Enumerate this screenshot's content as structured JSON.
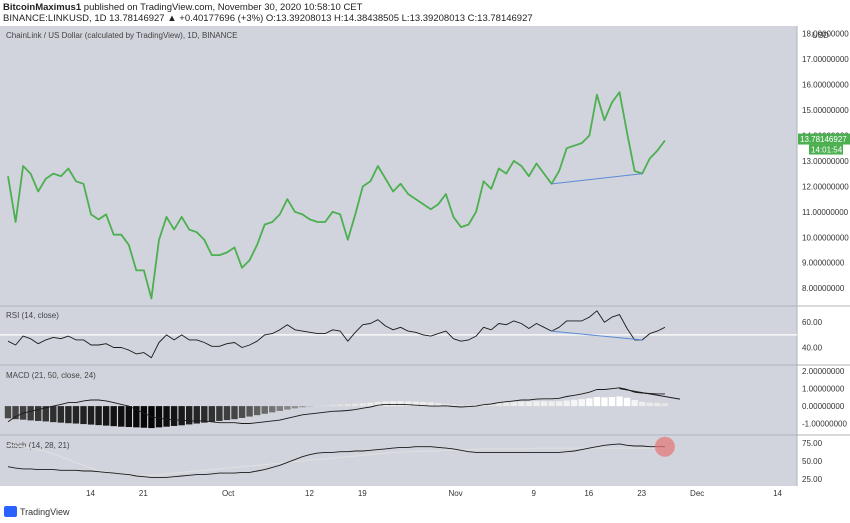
{
  "header": {
    "line1_user": "BitcoinMaximus1",
    "line1_rest": " published on TradingView.com, November 30, 2020 10:58:10 CET",
    "line2": "BINANCE:LINKUSD, 1D  13.78146927  ▲ +0.40177696 (+3%)  O:13.39208013  H:14.38438505  L:13.39208013  C:13.78146927"
  },
  "footer": {
    "brand": "TradingView"
  },
  "colors": {
    "background": "#d1d4dc",
    "price_line": "#4caf50",
    "trend_line": "#5b8bd6",
    "indicator_line": "#1a1a1a",
    "stoch_signal": "#e0e0e0",
    "stoch_marker": "#e57373"
  },
  "chart_data": [
    {
      "type": "line",
      "pane": "price",
      "title": "ChainLink / US Dollar (calculated by TradingView), 1D, BINANCE",
      "currency_label": "USD",
      "ylim": [
        7.3,
        18.3
      ],
      "y_ticks": [
        "8.00000000",
        "9.00000000",
        "10.00000000",
        "11.00000000",
        "12.00000000",
        "13.00000000",
        "14.00000000",
        "15.00000000",
        "16.00000000",
        "17.00000000",
        "18.00000000"
      ],
      "x_ticks": [
        "14",
        "21",
        "Oct",
        "12",
        "19",
        "Nov",
        "9",
        "16",
        "23",
        "Dec",
        "14"
      ],
      "last_price_label": "13.78146927",
      "countdown_label": "14:01:54",
      "values": [
        12.4,
        10.6,
        12.8,
        12.5,
        11.8,
        12.3,
        12.5,
        12.4,
        12.7,
        12.2,
        12.1,
        10.9,
        10.7,
        10.9,
        10.1,
        10.1,
        9.7,
        8.7,
        8.7,
        7.6,
        9.9,
        10.8,
        10.3,
        10.8,
        10.3,
        10.2,
        9.9,
        9.3,
        9.3,
        9.4,
        9.6,
        8.8,
        9.1,
        9.7,
        10.5,
        10.6,
        10.9,
        11.5,
        11.0,
        10.9,
        10.7,
        10.6,
        10.6,
        11.0,
        10.9,
        9.9,
        10.9,
        12.0,
        12.2,
        12.8,
        12.3,
        11.8,
        12.1,
        11.7,
        11.5,
        11.3,
        11.1,
        11.3,
        11.7,
        10.8,
        10.4,
        10.5,
        11.0,
        12.2,
        11.9,
        12.7,
        12.5,
        13.0,
        12.8,
        12.4,
        12.9,
        12.5,
        12.1,
        12.6,
        13.5,
        13.6,
        13.7,
        14.0,
        15.6,
        14.6,
        15.3,
        15.7,
        14.1,
        12.6,
        12.5,
        13.1,
        13.4,
        13.8
      ],
      "trend_line": {
        "x_index": [
          72,
          84
        ],
        "values": [
          12.1,
          12.5
        ]
      }
    },
    {
      "type": "line",
      "pane": "rsi",
      "title": "RSI (14, close)",
      "ylim": [
        27,
        72
      ],
      "y_ticks": [
        "40.00",
        "60.00"
      ],
      "reference_level": 50,
      "values": [
        45,
        42,
        49,
        47,
        43,
        46,
        48,
        47,
        49,
        46,
        46,
        42,
        42,
        43,
        40,
        40,
        38,
        35,
        36,
        32,
        44,
        50,
        46,
        50,
        46,
        46,
        44,
        41,
        41,
        43,
        44,
        40,
        42,
        45,
        50,
        51,
        54,
        58,
        54,
        53,
        52,
        51,
        51,
        54,
        53,
        45,
        52,
        58,
        59,
        62,
        57,
        54,
        56,
        53,
        52,
        50,
        49,
        51,
        53,
        47,
        45,
        46,
        49,
        56,
        54,
        59,
        58,
        61,
        59,
        55,
        59,
        56,
        53,
        56,
        61,
        61,
        61,
        64,
        69,
        60,
        64,
        66,
        55,
        46,
        46,
        51,
        53,
        56
      ],
      "trend_line": {
        "x_index": [
          72,
          84
        ],
        "values": [
          53,
          46
        ]
      }
    },
    {
      "type": "bar",
      "pane": "macd",
      "title": "MACD (21, 50, close, 24)",
      "ylim": [
        -1.6,
        2.3
      ],
      "y_ticks": [
        "-1.00000000",
        "0.00000000",
        "1.00000000",
        "2.00000000"
      ],
      "histogram": [
        -0.7,
        -0.75,
        -0.78,
        -0.82,
        -0.85,
        -0.88,
        -0.92,
        -0.95,
        -0.98,
        -1.0,
        -1.03,
        -1.06,
        -1.09,
        -1.12,
        -1.15,
        -1.18,
        -1.2,
        -1.22,
        -1.24,
        -1.26,
        -1.22,
        -1.18,
        -1.14,
        -1.1,
        -1.05,
        -1.0,
        -0.95,
        -0.9,
        -0.85,
        -0.8,
        -0.75,
        -0.68,
        -0.6,
        -0.52,
        -0.44,
        -0.36,
        -0.28,
        -0.2,
        -0.13,
        -0.07,
        -0.02,
        0.02,
        0.05,
        0.08,
        0.1,
        0.12,
        0.14,
        0.17,
        0.2,
        0.24,
        0.27,
        0.28,
        0.28,
        0.27,
        0.26,
        0.24,
        0.22,
        0.18,
        0.14,
        0.1,
        0.07,
        0.06,
        0.08,
        0.11,
        0.14,
        0.16,
        0.2,
        0.24,
        0.26,
        0.27,
        0.28,
        0.28,
        0.27,
        0.28,
        0.32,
        0.36,
        0.4,
        0.45,
        0.52,
        0.5,
        0.52,
        0.55,
        0.48,
        0.35,
        0.25,
        0.2,
        0.18,
        0.16
      ],
      "macd_line": [
        -0.9,
        -0.6,
        -0.4,
        -0.3,
        -0.2,
        -0.1,
        0.0,
        0.1,
        0.2,
        0.2,
        0.3,
        0.35,
        0.35,
        0.3,
        0.2,
        0.1,
        0.0,
        -0.2,
        -0.4,
        -0.6,
        -0.7,
        -0.75,
        -0.8,
        -0.8,
        -0.85,
        -0.85,
        -0.85,
        -0.9,
        -0.95,
        -0.95,
        -0.95,
        -1.0,
        -1.0,
        -0.95,
        -0.9,
        -0.85,
        -0.8,
        -0.7,
        -0.6,
        -0.5,
        -0.45,
        -0.4,
        -0.35,
        -0.3,
        -0.28,
        -0.25,
        -0.2,
        -0.12,
        -0.05,
        0.05,
        0.1,
        0.1,
        0.1,
        0.08,
        0.05,
        0.03,
        0.0,
        0.0,
        0.02,
        -0.02,
        -0.05,
        -0.03,
        0.0,
        0.08,
        0.12,
        0.2,
        0.25,
        0.3,
        0.35,
        0.35,
        0.4,
        0.42,
        0.42,
        0.45,
        0.55,
        0.62,
        0.7,
        0.8,
        0.95,
        0.95,
        1.0,
        1.05,
        0.95,
        0.8,
        0.75,
        0.72,
        0.7,
        0.7
      ],
      "signal_trend": {
        "x_index": [
          81,
          89
        ],
        "values": [
          1.0,
          0.4
        ]
      }
    },
    {
      "type": "line",
      "pane": "stoch",
      "title": "Stoch (14, 28, 21)",
      "ylim": [
        15,
        85
      ],
      "y_ticks": [
        "25.00",
        "50.00",
        "75.00"
      ],
      "k_line": [
        42,
        40,
        39,
        39,
        38,
        38,
        38,
        37,
        37,
        37,
        36,
        36,
        35,
        34,
        33,
        32,
        31,
        29,
        28,
        27,
        27,
        27,
        28,
        29,
        30,
        31,
        31,
        32,
        33,
        33,
        33,
        34,
        34,
        36,
        38,
        41,
        44,
        48,
        52,
        56,
        59,
        61,
        62,
        62,
        63,
        63,
        64,
        64,
        65,
        66,
        67,
        68,
        69,
        69,
        70,
        70,
        70,
        69,
        68,
        67,
        65,
        63,
        62,
        62,
        62,
        62,
        62,
        62,
        62,
        62,
        62,
        62,
        62,
        62,
        63,
        64,
        66,
        68,
        70,
        72,
        73,
        74,
        72,
        71,
        71,
        70,
        70,
        70
      ],
      "d_line": [
        72,
        71,
        70,
        68,
        66,
        63,
        60,
        56,
        52,
        48,
        44,
        40,
        37,
        35,
        33,
        32,
        31,
        30,
        30,
        30,
        31,
        32,
        33,
        34,
        35,
        36,
        37,
        38,
        39,
        40,
        41,
        42,
        43,
        44,
        45,
        46,
        47,
        48,
        49,
        50,
        51,
        52,
        53,
        54,
        55,
        56,
        57,
        58,
        59,
        60,
        61,
        62,
        62,
        63,
        63,
        64,
        64,
        64,
        65,
        65,
        66,
        66,
        66,
        67,
        67,
        67,
        67,
        67,
        67,
        67,
        68,
        68,
        68,
        68,
        68,
        68,
        68,
        68,
        68,
        68,
        68,
        68,
        68,
        68,
        68,
        68,
        68,
        68
      ]
    }
  ]
}
